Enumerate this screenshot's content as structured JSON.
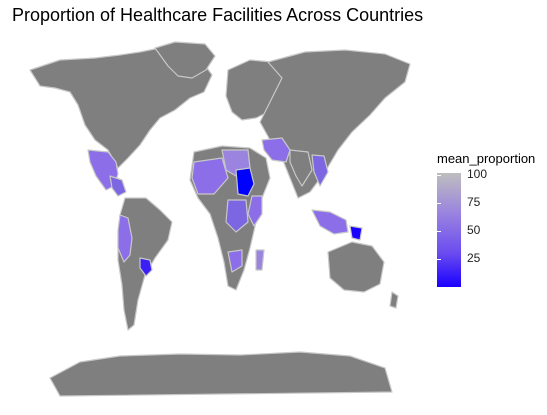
{
  "title": "Proportion of Healthcare Facilities Across Countries",
  "legend": {
    "title": "mean_proportion",
    "ticks": [
      {
        "label": "100",
        "value": 100
      },
      {
        "label": "75",
        "value": 75
      },
      {
        "label": "50",
        "value": 50
      },
      {
        "label": "25",
        "value": 25
      }
    ],
    "low_color": "#0000ff",
    "high_color": "#bebebe"
  },
  "colors": {
    "land_no_data": "#7f7f7f",
    "border": "#c8c8c8",
    "background": "#ffffff"
  }
}
